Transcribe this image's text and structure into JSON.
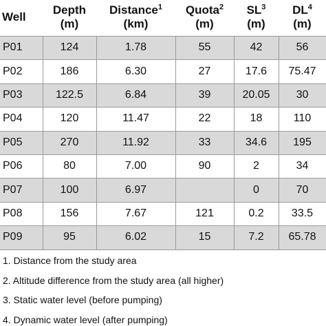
{
  "table": {
    "header": [
      {
        "label": "Well"
      },
      {
        "label": "Depth",
        "unit": "(m)"
      },
      {
        "label": "Distance",
        "sup": "1",
        "unit": "(km)"
      },
      {
        "label": "Quota",
        "sup": "2",
        "unit": "(m)"
      },
      {
        "label": "SL",
        "sup": "3",
        "unit": "(m)"
      },
      {
        "label": "DL",
        "sup": "4",
        "unit": "(m)"
      }
    ],
    "rows": [
      [
        "P01",
        "124",
        "1.78",
        "55",
        "42",
        "56"
      ],
      [
        "P02",
        "186",
        "6.30",
        "27",
        "17.6",
        "75.47"
      ],
      [
        "P03",
        "122.5",
        "6.84",
        "39",
        "20.05",
        "30"
      ],
      [
        "P04",
        "120",
        "11.47",
        "22",
        "18",
        "110"
      ],
      [
        "P05",
        "270",
        "11.92",
        "33",
        "34.6",
        "195"
      ],
      [
        "P06",
        "80",
        "7.00",
        "90",
        "2",
        "34"
      ],
      [
        "P07",
        "100",
        "6.97",
        null,
        "0",
        "70"
      ],
      [
        "P08",
        "156",
        "7.67",
        "121",
        "0.2",
        "33.5"
      ],
      [
        "P09",
        "95",
        "6.02",
        "15",
        "7.2",
        "65.78"
      ]
    ]
  },
  "footnotes": [
    "1. Distance from the study area",
    "2. Altitude difference from the study area (all higher)",
    "3. Static water level (before pumping)",
    "4. Dynamic water level (after pumping)"
  ]
}
